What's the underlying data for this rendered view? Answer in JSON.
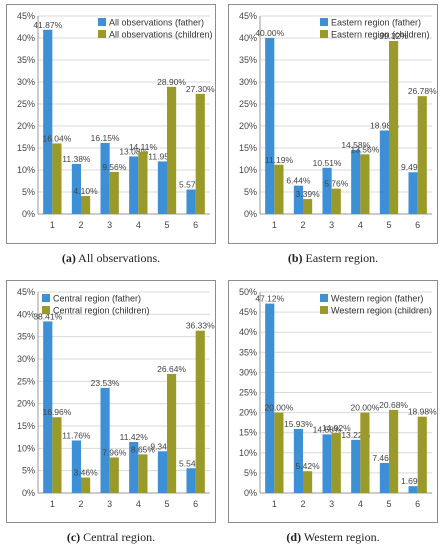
{
  "colors": {
    "father": "#3d8fd6",
    "children_panel_a": "#9a9a2a",
    "children": "#f07d1e",
    "grid": "#d9d9d9",
    "frame": "#8c8c8c"
  },
  "chart_data": [
    {
      "type": "bar",
      "caption_tag": "(a)",
      "caption_text": "All observations.",
      "categories": [
        "1",
        "2",
        "3",
        "4",
        "5",
        "6"
      ],
      "ylim": [
        0,
        45
      ],
      "yticks": [
        "0%",
        "5%",
        "10%",
        "15%",
        "20%",
        "25%",
        "30%",
        "35%",
        "40%",
        "45%"
      ],
      "series": [
        {
          "name": "All observations (father)",
          "values": [
            41.87,
            11.38,
            16.15,
            13.08,
            11.95,
            5.57
          ],
          "labels": [
            "41.87%",
            "11.38%",
            "16.15%",
            "13.08%",
            "11.95%",
            "5.57%"
          ]
        },
        {
          "name": "All observations (children)",
          "values": [
            16.04,
            4.1,
            9.56,
            14.11,
            28.9,
            27.3
          ],
          "labels": [
            "16.04%",
            "4.10%",
            "9.56%",
            "14.11%",
            "28.90%",
            "27.30%"
          ]
        }
      ],
      "legend": "top-right",
      "grid": true
    },
    {
      "type": "bar",
      "caption_tag": "(b)",
      "caption_text": "Eastern region.",
      "categories": [
        "1",
        "2",
        "3",
        "4",
        "5",
        "6"
      ],
      "ylim": [
        0,
        45
      ],
      "yticks": [
        "0%",
        "5%",
        "10%",
        "15%",
        "20%",
        "25%",
        "30%",
        "35%",
        "40%",
        "45%"
      ],
      "series": [
        {
          "name": "Eastern region (father)",
          "values": [
            40.0,
            6.44,
            10.51,
            14.58,
            18.98,
            9.49
          ],
          "labels": [
            "40.00%",
            "6.44%",
            "10.51%",
            "14.58%",
            "18.98%",
            "9.49%"
          ]
        },
        {
          "name": "Eastern region (children)",
          "values": [
            11.19,
            3.39,
            5.76,
            13.56,
            39.32,
            26.78
          ],
          "labels": [
            "11.19%",
            "3.39%",
            "5.76%",
            "13.56%",
            "39.32%",
            "26.78%"
          ]
        }
      ],
      "legend": "top-right",
      "grid": true
    },
    {
      "type": "bar",
      "caption_tag": "(c)",
      "caption_text": "Central region.",
      "categories": [
        "1",
        "2",
        "3",
        "4",
        "5",
        "6"
      ],
      "ylim": [
        0,
        45
      ],
      "yticks": [
        "0%",
        "5%",
        "10%",
        "15%",
        "20%",
        "25%",
        "30%",
        "35%",
        "40%",
        "45%"
      ],
      "series": [
        {
          "name": "Central region (father)",
          "values": [
            38.41,
            11.76,
            23.53,
            11.42,
            9.34,
            5.54
          ],
          "labels": [
            "38.41%",
            "11.76%",
            "23.53%",
            "11.42%",
            "9.34%",
            "5.54%"
          ]
        },
        {
          "name": "Central region (children)",
          "values": [
            16.96,
            3.46,
            7.96,
            8.65,
            26.64,
            36.33
          ],
          "labels": [
            "16.96%",
            "3.46%",
            "7.96%",
            "8.65%",
            "26.64%",
            "36.33%"
          ]
        }
      ],
      "legend": "top-left",
      "grid": true
    },
    {
      "type": "bar",
      "caption_tag": "(d)",
      "caption_text": "Western region.",
      "categories": [
        "1",
        "2",
        "3",
        "4",
        "5",
        "6"
      ],
      "ylim": [
        0,
        50
      ],
      "yticks": [
        "0%",
        "5%",
        "10%",
        "15%",
        "20%",
        "25%",
        "30%",
        "35%",
        "40%",
        "45%",
        "50%"
      ],
      "series": [
        {
          "name": "Western region (father)",
          "values": [
            47.12,
            15.93,
            14.58,
            13.22,
            7.46,
            1.69
          ],
          "labels": [
            "47.12%",
            "15.93%",
            "14.58%",
            "13.22%",
            "7.46%",
            "1.69%"
          ]
        },
        {
          "name": "Western region (children)",
          "values": [
            20.0,
            5.42,
            14.92,
            20.0,
            20.68,
            18.98
          ],
          "labels": [
            "20.00%",
            "5.42%",
            "14.92%",
            "20.00%",
            "20.68%",
            "18.98%"
          ]
        }
      ],
      "legend": "top-right",
      "grid": true
    }
  ]
}
